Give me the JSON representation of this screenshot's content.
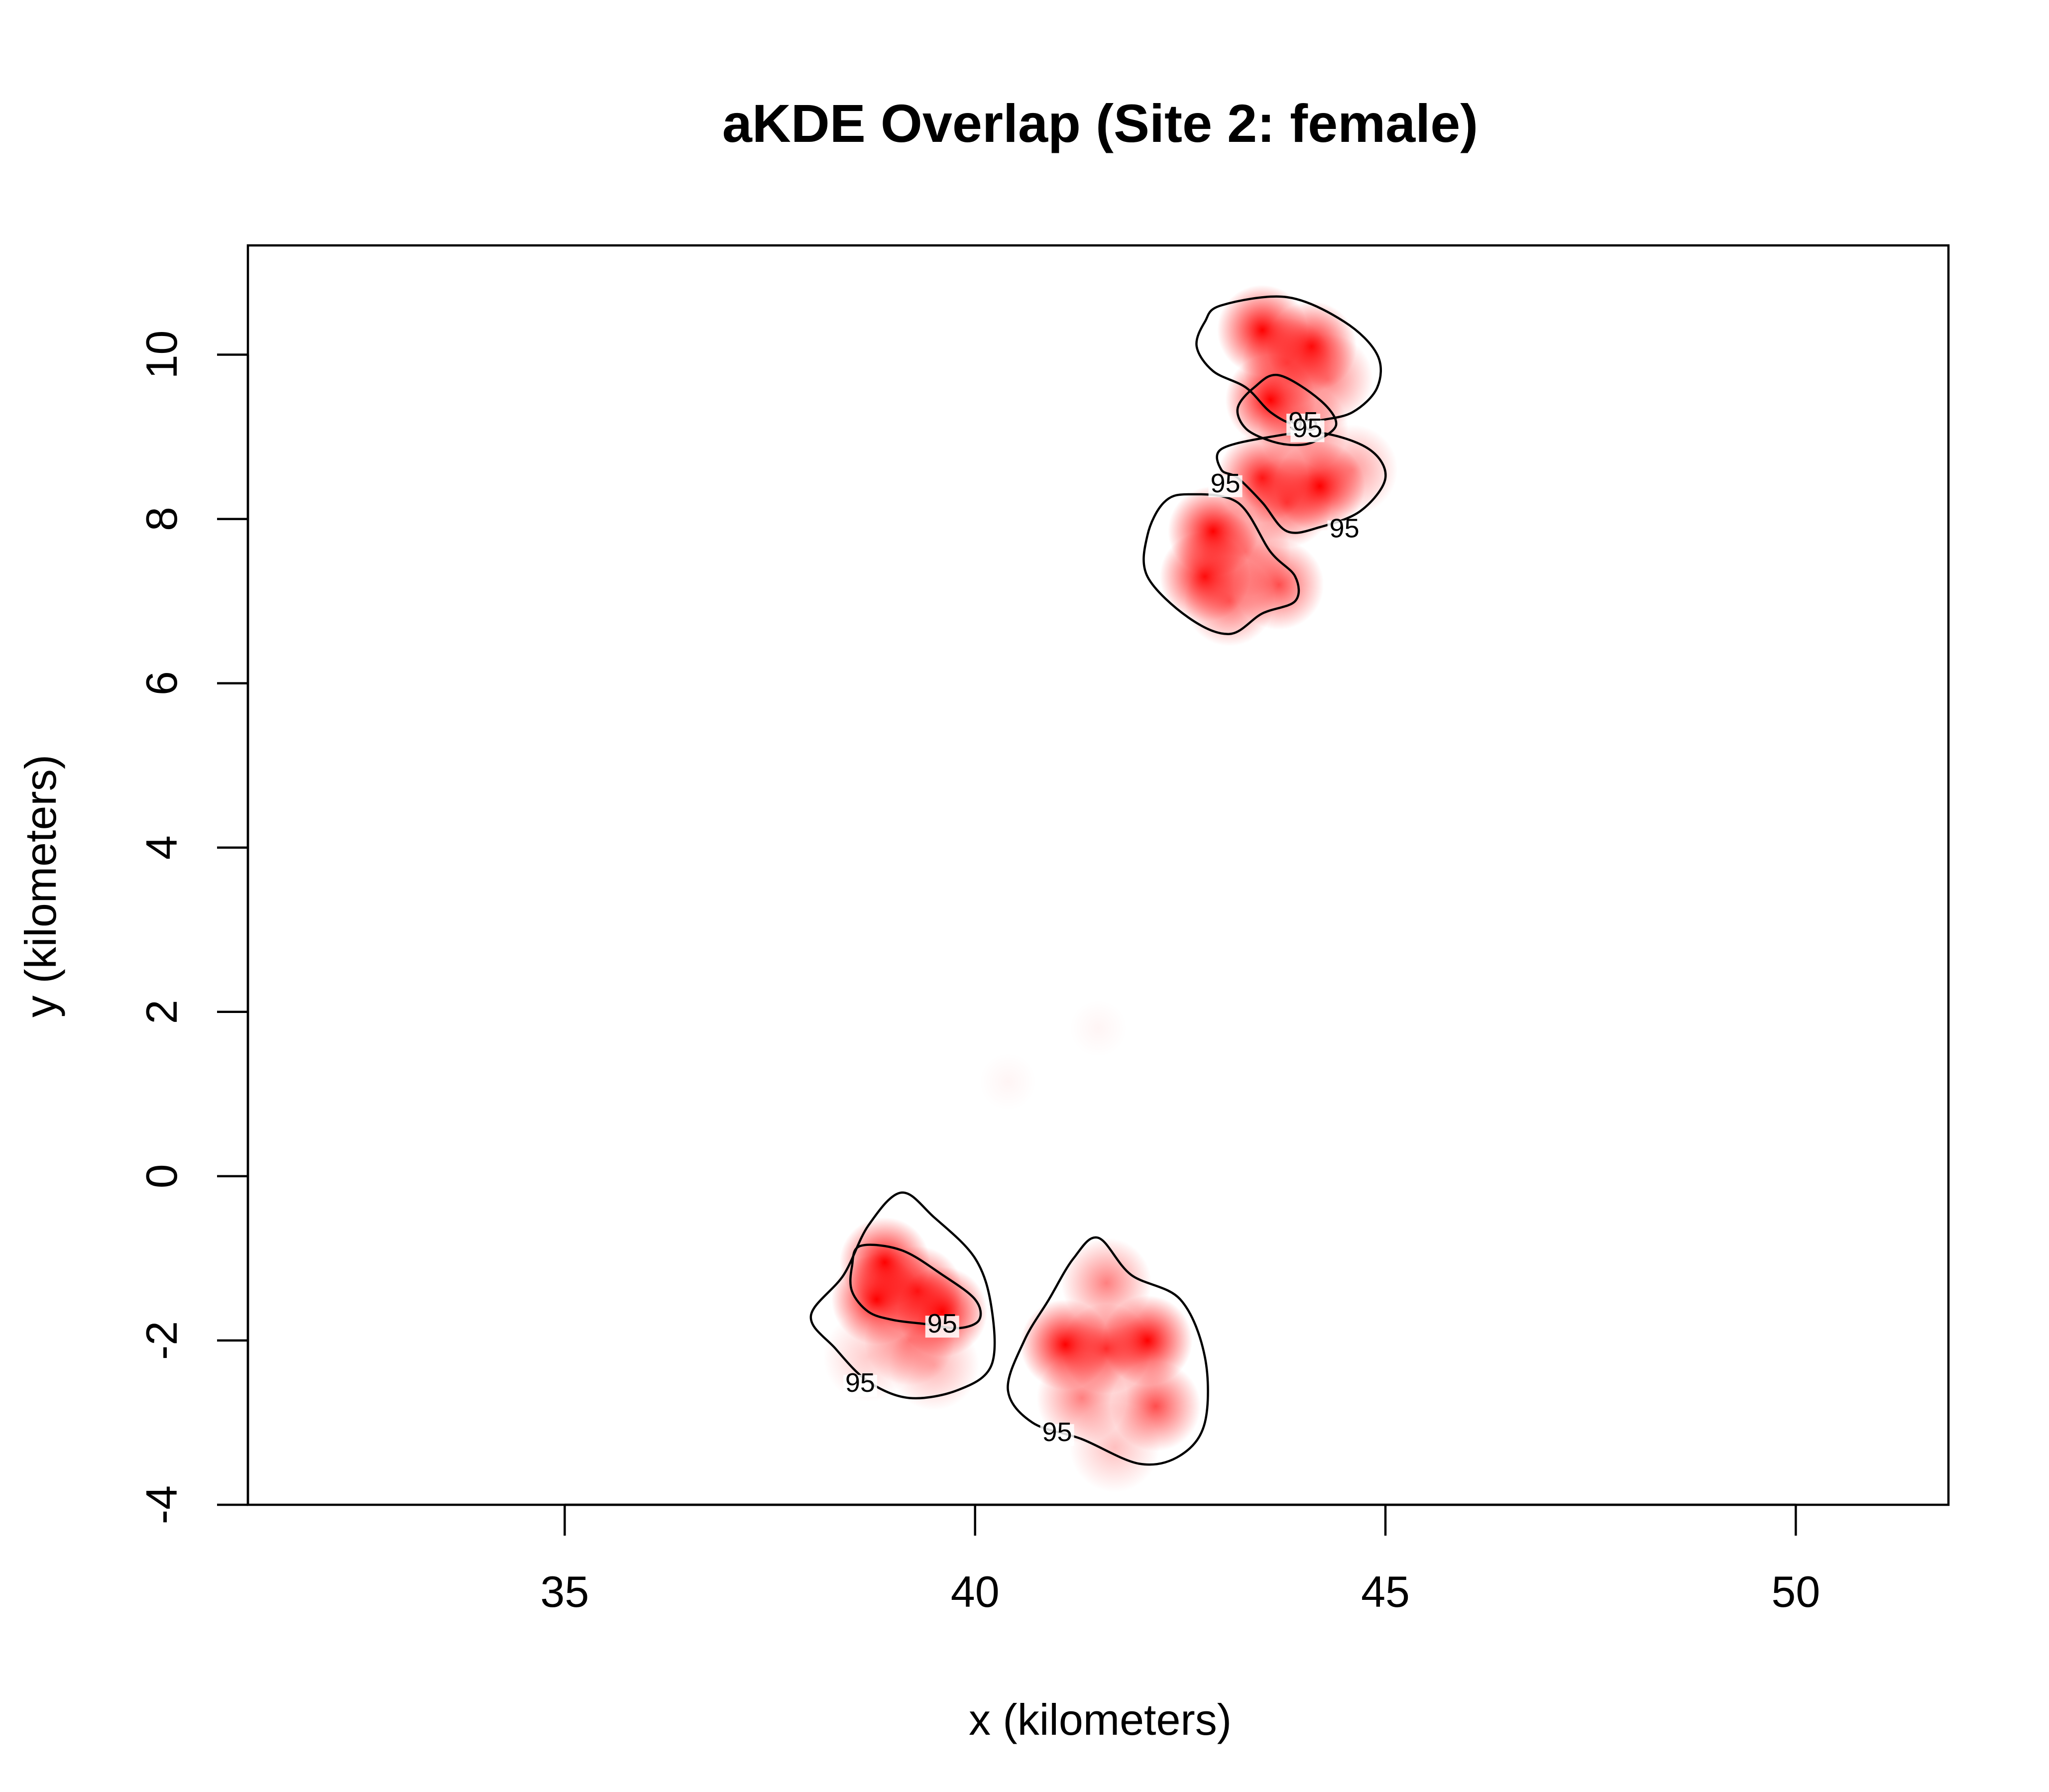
{
  "chart_data": {
    "type": "heatmap",
    "title": "aKDE Overlap (Site 2: female)",
    "xlabel": "x (kilometers)",
    "ylabel": "y (kilometers)",
    "xlim": [
      31.14,
      51.86
    ],
    "ylim": [
      -4.0,
      11.33
    ],
    "x_ticks": [
      35,
      40,
      45,
      50
    ],
    "y_ticks": [
      -4,
      -2,
      0,
      2,
      4,
      6,
      8,
      10
    ],
    "contour_level_label": "95",
    "density_color": "#ff0000",
    "background_color": "#ffffff",
    "grid": false,
    "hotspots": [
      {
        "x": 43.5,
        "y": 10.3,
        "w": 1.0
      },
      {
        "x": 44.1,
        "y": 10.1,
        "w": 0.95
      },
      {
        "x": 43.8,
        "y": 9.9,
        "w": 0.6
      },
      {
        "x": 44.3,
        "y": 9.7,
        "w": 0.5
      },
      {
        "x": 43.6,
        "y": 9.45,
        "w": 1.0
      },
      {
        "x": 44.0,
        "y": 9.1,
        "w": 0.6
      },
      {
        "x": 43.5,
        "y": 8.5,
        "w": 0.9
      },
      {
        "x": 44.2,
        "y": 8.4,
        "w": 1.0
      },
      {
        "x": 44.6,
        "y": 8.6,
        "w": 0.4
      },
      {
        "x": 43.8,
        "y": 8.2,
        "w": 0.7
      },
      {
        "x": 42.9,
        "y": 7.85,
        "w": 1.0
      },
      {
        "x": 42.8,
        "y": 7.3,
        "w": 0.95
      },
      {
        "x": 43.1,
        "y": 7.0,
        "w": 0.6
      },
      {
        "x": 43.7,
        "y": 7.2,
        "w": 0.7
      },
      {
        "x": 43.3,
        "y": 7.6,
        "w": 0.5
      },
      {
        "x": 38.9,
        "y": -1.05,
        "w": 1.1
      },
      {
        "x": 38.8,
        "y": -1.5,
        "w": 1.0
      },
      {
        "x": 39.3,
        "y": -1.4,
        "w": 0.9
      },
      {
        "x": 39.6,
        "y": -1.65,
        "w": 1.0
      },
      {
        "x": 39.2,
        "y": -2.0,
        "w": 0.5
      },
      {
        "x": 39.5,
        "y": -2.3,
        "w": 0.3
      },
      {
        "x": 38.7,
        "y": -2.2,
        "w": 0.2
      },
      {
        "x": 41.1,
        "y": -2.05,
        "w": 1.0
      },
      {
        "x": 41.6,
        "y": -2.1,
        "w": 0.8
      },
      {
        "x": 42.1,
        "y": -2.0,
        "w": 1.0
      },
      {
        "x": 42.2,
        "y": -2.8,
        "w": 0.7
      },
      {
        "x": 41.6,
        "y": -1.3,
        "w": 0.5
      },
      {
        "x": 41.3,
        "y": -2.7,
        "w": 0.5
      },
      {
        "x": 41.7,
        "y": -3.3,
        "w": 0.25
      },
      {
        "x": 40.4,
        "y": 1.15,
        "w": 0.04
      },
      {
        "x": 41.5,
        "y": 1.8,
        "w": 0.04
      }
    ],
    "contours": [
      {
        "label": "95",
        "label_at": [
          44.0,
          9.1
        ],
        "points": [
          [
            43.0,
            10.6
          ],
          [
            43.8,
            10.7
          ],
          [
            44.5,
            10.4
          ],
          [
            44.9,
            10.0
          ],
          [
            44.9,
            9.6
          ],
          [
            44.6,
            9.3
          ],
          [
            44.2,
            9.2
          ],
          [
            43.9,
            9.15
          ],
          [
            43.6,
            9.3
          ],
          [
            43.3,
            9.6
          ],
          [
            42.9,
            9.8
          ],
          [
            42.7,
            10.1
          ],
          [
            42.8,
            10.4
          ]
        ]
      },
      {
        "label": "95",
        "label_at": [
          44.05,
          9.02
        ],
        "points": [
          [
            43.4,
            9.6
          ],
          [
            43.7,
            9.75
          ],
          [
            44.2,
            9.45
          ],
          [
            44.4,
            9.15
          ],
          [
            44.15,
            8.95
          ],
          [
            43.9,
            8.9
          ],
          [
            43.6,
            8.95
          ],
          [
            43.3,
            9.1
          ],
          [
            43.2,
            9.35
          ]
        ]
      },
      {
        "label": "95",
        "label_at": [
          43.05,
          8.35
        ],
        "points": [
          [
            43.0,
            8.85
          ],
          [
            43.6,
            9.0
          ],
          [
            44.2,
            9.05
          ],
          [
            44.8,
            8.85
          ],
          [
            45.0,
            8.5
          ],
          [
            44.7,
            8.1
          ],
          [
            44.2,
            7.9
          ],
          [
            43.8,
            7.85
          ],
          [
            43.5,
            8.2
          ],
          [
            43.2,
            8.5
          ],
          [
            43.0,
            8.6
          ]
        ]
      },
      {
        "label": "95",
        "label_at": [
          44.5,
          7.8
        ],
        "points": [
          [
            42.6,
            8.3
          ],
          [
            43.2,
            8.2
          ],
          [
            43.6,
            7.6
          ],
          [
            43.9,
            7.3
          ],
          [
            43.9,
            7.0
          ],
          [
            43.5,
            6.85
          ],
          [
            43.1,
            6.6
          ],
          [
            42.6,
            6.8
          ],
          [
            42.1,
            7.3
          ],
          [
            42.1,
            7.8
          ],
          [
            42.3,
            8.2
          ]
        ]
      },
      {
        "label": "95",
        "label_at": [
          39.6,
          -1.88
        ],
        "points": [
          [
            38.6,
            -0.85
          ],
          [
            39.1,
            -0.9
          ],
          [
            39.6,
            -1.2
          ],
          [
            40.0,
            -1.5
          ],
          [
            40.05,
            -1.75
          ],
          [
            39.8,
            -1.85
          ],
          [
            39.4,
            -1.8
          ],
          [
            39.0,
            -1.75
          ],
          [
            38.7,
            -1.65
          ],
          [
            38.5,
            -1.4
          ],
          [
            38.5,
            -1.1
          ]
        ]
      },
      {
        "label": "95",
        "label_at": [
          38.6,
          -2.6
        ],
        "points": [
          [
            39.1,
            -0.2
          ],
          [
            39.5,
            -0.5
          ],
          [
            40.0,
            -1.0
          ],
          [
            40.2,
            -1.6
          ],
          [
            40.2,
            -2.3
          ],
          [
            39.8,
            -2.6
          ],
          [
            39.2,
            -2.7
          ],
          [
            38.7,
            -2.5
          ],
          [
            38.3,
            -2.1
          ],
          [
            38.0,
            -1.7
          ],
          [
            38.4,
            -1.2
          ],
          [
            38.7,
            -0.6
          ]
        ]
      },
      {
        "label": "95",
        "label_at": [
          41.0,
          -3.2
        ],
        "points": [
          [
            41.5,
            -0.75
          ],
          [
            41.9,
            -1.2
          ],
          [
            42.5,
            -1.5
          ],
          [
            42.8,
            -2.2
          ],
          [
            42.8,
            -3.0
          ],
          [
            42.5,
            -3.4
          ],
          [
            42.0,
            -3.5
          ],
          [
            41.3,
            -3.2
          ],
          [
            40.7,
            -3.0
          ],
          [
            40.4,
            -2.6
          ],
          [
            40.6,
            -2.0
          ],
          [
            40.9,
            -1.5
          ],
          [
            41.2,
            -1.0
          ]
        ]
      }
    ]
  }
}
